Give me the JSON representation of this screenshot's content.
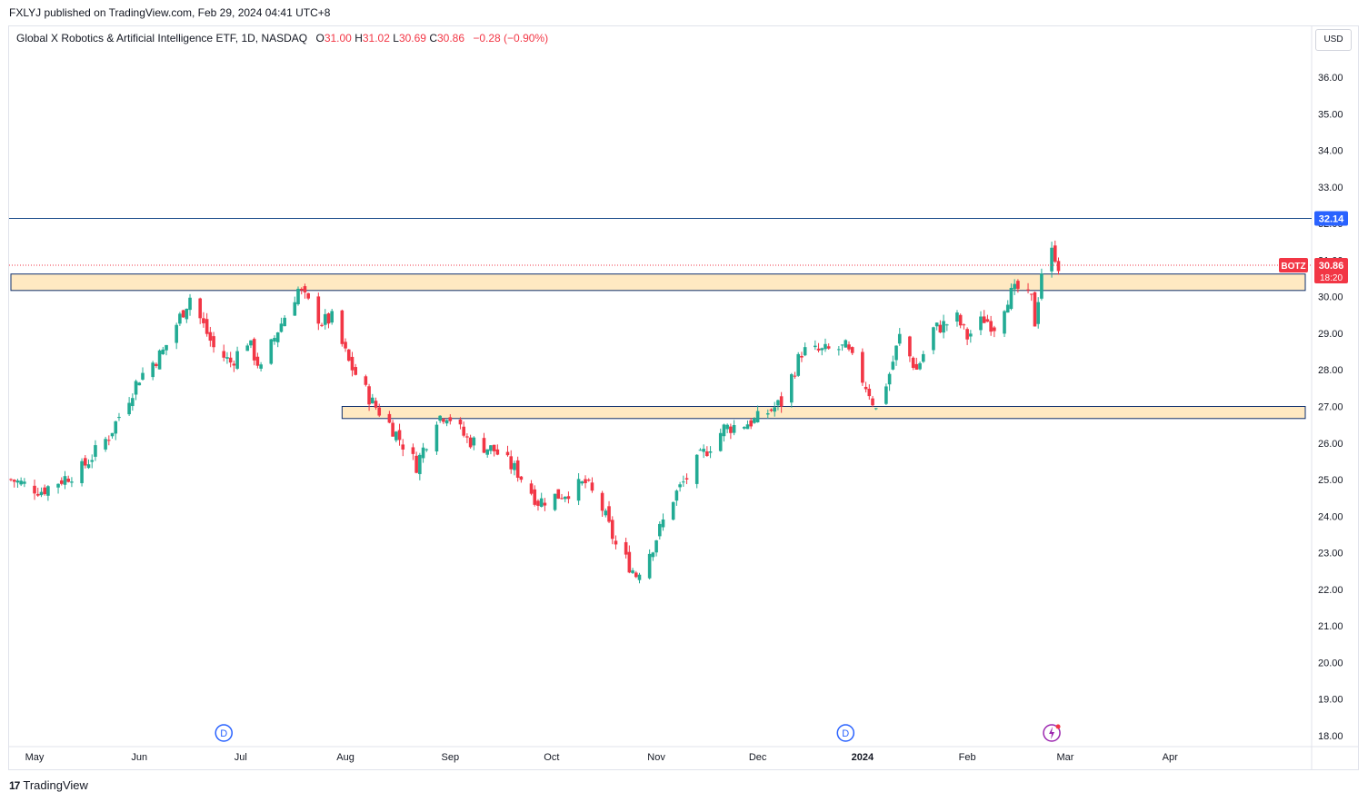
{
  "header": {
    "publisher_text": "FXLYJ published on TradingView.com, Feb 29, 2024 04:41 UTC+8"
  },
  "legend": {
    "name": "Global X Robotics & Artificial Intelligence ETF, 1D, NASDAQ",
    "open_label": "O",
    "open": "31.00",
    "high_label": "H",
    "high": "31.02",
    "low_label": "L",
    "low": "30.69",
    "close_label": "C",
    "close": "30.86",
    "change": "−0.28 (−0.90%)"
  },
  "currency_button": "USD",
  "footer": {
    "brand": "TradingView"
  },
  "colors": {
    "up": "#22ab94",
    "down": "#f23645",
    "zone_fill": "#ffe9c2",
    "zone_border": "#0d2f6e",
    "resistance_line": "#2962ff",
    "price_line": "#f23645"
  },
  "chart_data": {
    "type": "candlestick",
    "symbol": "BOTZ",
    "x_labels": [
      "May",
      "Jun",
      "Jul",
      "Aug",
      "Sep",
      "Oct",
      "Nov",
      "Dec",
      "2024",
      "Feb",
      "Mar",
      "Apr"
    ],
    "y_ticks": [
      "18.00",
      "19.00",
      "20.00",
      "21.00",
      "22.00",
      "23.00",
      "24.00",
      "25.00",
      "26.00",
      "27.00",
      "28.00",
      "29.00",
      "30.00",
      "31.00",
      "32.00",
      "33.00",
      "34.00",
      "35.00",
      "36.00"
    ],
    "ylim": [
      17.6,
      36.8
    ],
    "horizontal_line": {
      "value": 32.14,
      "label": "32.14"
    },
    "last_price": {
      "value": 30.86,
      "label": "30.86",
      "countdown": "18:20",
      "symbol": "BOTZ"
    },
    "zones": [
      {
        "from_date": "2023-04-24",
        "to_date": "2024-03-31",
        "low": 30.17,
        "high": 30.62
      },
      {
        "from_date": "2023-07-31",
        "to_date": "2024-03-31",
        "low": 26.67,
        "high": 27.0
      }
    ],
    "dividend_markers": [
      {
        "date": "2023-06-26",
        "label": "D"
      },
      {
        "date": "2023-12-27",
        "label": "D"
      }
    ],
    "earnings_marker": {
      "date": "2024-02-26"
    },
    "anchors": [
      [
        "2023-04-24",
        25.0
      ],
      [
        "2023-05-03",
        24.7
      ],
      [
        "2023-05-15",
        25.3
      ],
      [
        "2023-05-23",
        26.2
      ],
      [
        "2023-06-01",
        27.8
      ],
      [
        "2023-06-08",
        28.5
      ],
      [
        "2023-06-16",
        30.0
      ],
      [
        "2023-06-23",
        28.6
      ],
      [
        "2023-06-28",
        28.2
      ],
      [
        "2023-07-03",
        28.8
      ],
      [
        "2023-07-07",
        28.0
      ],
      [
        "2023-07-12",
        29.1
      ],
      [
        "2023-07-18",
        30.2
      ],
      [
        "2023-07-25",
        29.3
      ],
      [
        "2023-07-28",
        29.4
      ],
      [
        "2023-08-02",
        28.2
      ],
      [
        "2023-08-09",
        27.1
      ],
      [
        "2023-08-15",
        26.4
      ],
      [
        "2023-08-22",
        25.4
      ],
      [
        "2023-08-28",
        26.7
      ],
      [
        "2023-08-31",
        26.8
      ],
      [
        "2023-09-06",
        26.1
      ],
      [
        "2023-09-14",
        25.8
      ],
      [
        "2023-09-21",
        25.2
      ],
      [
        "2023-09-27",
        24.4
      ],
      [
        "2023-10-04",
        24.6
      ],
      [
        "2023-10-11",
        24.9
      ],
      [
        "2023-10-16",
        24.2
      ],
      [
        "2023-10-20",
        23.2
      ],
      [
        "2023-10-26",
        22.4
      ],
      [
        "2023-10-31",
        23.2
      ],
      [
        "2023-11-06",
        24.5
      ],
      [
        "2023-11-14",
        25.6
      ],
      [
        "2023-11-21",
        26.4
      ],
      [
        "2023-11-30",
        26.6
      ],
      [
        "2023-12-08",
        27.1
      ],
      [
        "2023-12-14",
        28.5
      ],
      [
        "2023-12-20",
        28.5
      ],
      [
        "2023-12-27",
        28.6
      ],
      [
        "2024-01-03",
        27.4
      ],
      [
        "2024-01-05",
        26.9
      ],
      [
        "2024-01-09",
        27.9
      ],
      [
        "2024-01-12",
        28.9
      ],
      [
        "2024-01-17",
        28.0
      ],
      [
        "2024-01-22",
        29.1
      ],
      [
        "2024-01-29",
        29.4
      ],
      [
        "2024-02-01",
        28.9
      ],
      [
        "2024-02-06",
        29.4
      ],
      [
        "2024-02-09",
        29.2
      ],
      [
        "2024-02-13",
        30.0
      ],
      [
        "2024-02-16",
        30.2
      ],
      [
        "2024-02-20",
        29.9
      ],
      [
        "2024-02-21",
        29.3
      ],
      [
        "2024-02-23",
        30.7
      ],
      [
        "2024-02-26",
        31.2
      ],
      [
        "2024-02-27",
        31.14
      ],
      [
        "2024-02-28",
        30.86
      ]
    ]
  }
}
